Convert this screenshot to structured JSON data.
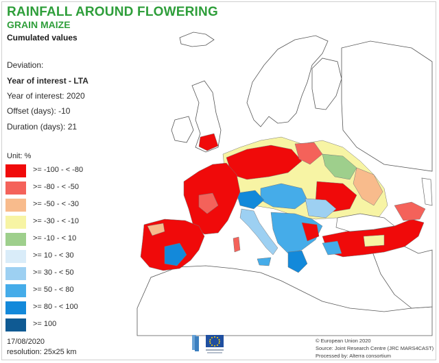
{
  "header": {
    "title": "RAINFALL AROUND FLOWERING",
    "subtitle": "GRAIN MAIZE",
    "cumulated": "Cumulated values"
  },
  "info": {
    "deviation": "Deviation:",
    "year_vs_lta": "Year of interest - LTA",
    "year_of_interest": "Year of interest: 2020",
    "offset": "Offset (days): -10",
    "duration": "Duration (days): 21"
  },
  "legend": {
    "unit": "Unit: %",
    "items": [
      {
        "label": ">= -100 - < -80",
        "color": "#f00a0a"
      },
      {
        "label": ">= -80 - < -50",
        "color": "#f4625a"
      },
      {
        "label": ">= -50 - < -30",
        "color": "#f8bb8c"
      },
      {
        "label": ">= -30 - < -10",
        "color": "#f7f4a4"
      },
      {
        "label": ">= -10 - < 10",
        "color": "#9ecf8c"
      },
      {
        "label": ">= 10 - < 30",
        "color": "#d9ecf9"
      },
      {
        "label": ">= 30 - < 50",
        "color": "#9dd0f2"
      },
      {
        "label": ">= 50 - < 80",
        "color": "#45ace9"
      },
      {
        "label": ">= 80 - < 100",
        "color": "#1389da"
      },
      {
        "label": ">= 100",
        "color": "#0f5a93"
      }
    ]
  },
  "footer": {
    "date": "17/08/2020",
    "resolution": "resolution: 25x25 km",
    "credit1": "© European Union 2020",
    "credit2": "Source: Joint Research Centre (JRC MARS4CAST)",
    "credit3": "Processed by: Alterra consortium"
  },
  "logo": {
    "name": "European Commission"
  }
}
